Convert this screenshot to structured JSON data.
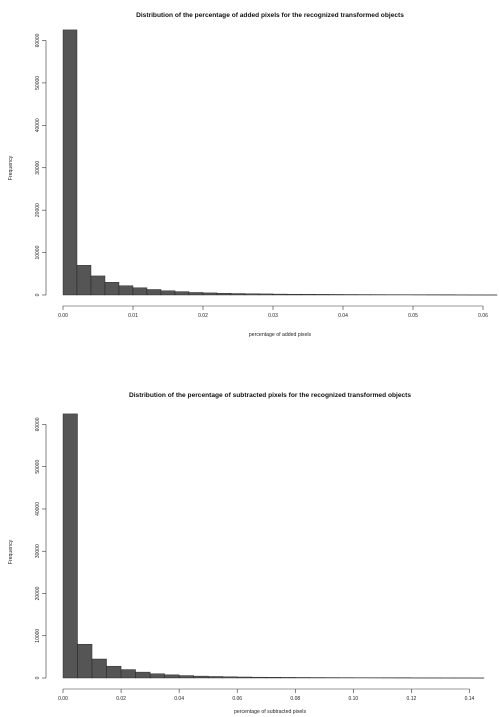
{
  "chart_data": [
    {
      "type": "bar",
      "title": "Distribution of the percentage of added pixels for the recognized transformed objects",
      "xlabel": "percentage of added pixels",
      "ylabel": "Frequency",
      "xlim": [
        0,
        0.062
      ],
      "ylim": [
        0,
        62000
      ],
      "bin_width": 0.002,
      "xticks": [
        0.0,
        0.01,
        0.02,
        0.03,
        0.04,
        0.05,
        0.06
      ],
      "xtick_labels": [
        "0.00",
        "0.01",
        "0.02",
        "0.03",
        "0.04",
        "0.05",
        "0.06"
      ],
      "yticks": [
        0,
        10000,
        20000,
        30000,
        40000,
        50000,
        60000
      ],
      "ytick_labels": [
        "0",
        "10000",
        "20000",
        "30000",
        "40000",
        "50000",
        "60000"
      ],
      "values": [
        62500,
        7000,
        4500,
        3000,
        2200,
        1700,
        1300,
        1000,
        800,
        600,
        500,
        420,
        350,
        300,
        260,
        220,
        190,
        170,
        150,
        130,
        115,
        100,
        90,
        80,
        70,
        62,
        55,
        50,
        45,
        40,
        35
      ],
      "grid": false,
      "legend": "none"
    },
    {
      "type": "bar",
      "title": "Distribution of the percentage of subtracted pixels for the recognized transformed objects",
      "xlabel": "percentage of subtracted pixels",
      "ylabel": "Frequency",
      "xlim": [
        0,
        0.145
      ],
      "ylim": [
        0,
        62000
      ],
      "bin_width": 0.005,
      "xticks": [
        0.0,
        0.02,
        0.04,
        0.06,
        0.08,
        0.1,
        0.12,
        0.14
      ],
      "xtick_labels": [
        "0.00",
        "0.02",
        "0.04",
        "0.06",
        "0.08",
        "0.10",
        "0.12",
        "0.14"
      ],
      "yticks": [
        0,
        10000,
        20000,
        30000,
        40000,
        50000,
        60000
      ],
      "ytick_labels": [
        "0",
        "10000",
        "20000",
        "30000",
        "40000",
        "50000",
        "60000"
      ],
      "values": [
        62500,
        8000,
        4500,
        2800,
        2000,
        1400,
        1000,
        750,
        580,
        450,
        360,
        290,
        240,
        200,
        170,
        145,
        125,
        110,
        95,
        85,
        75,
        65,
        58,
        52,
        46,
        42,
        38,
        34,
        30
      ],
      "grid": false,
      "legend": "none"
    }
  ]
}
